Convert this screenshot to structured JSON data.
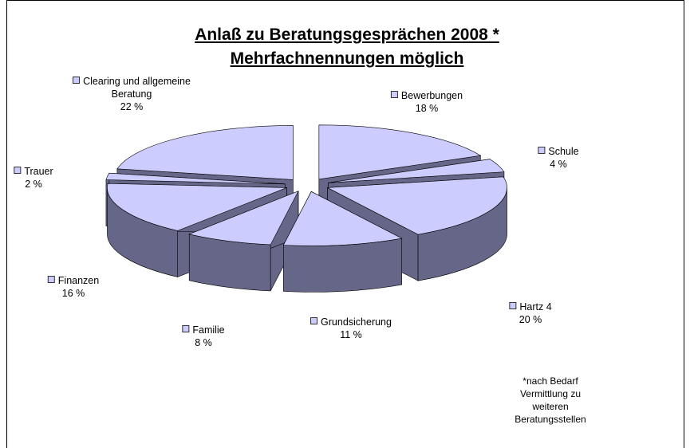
{
  "chart_data": {
    "type": "pie",
    "title": "Anlaß zu Beratungsgesprächen 2008 *",
    "subtitle": "Mehrfachnennungen möglich",
    "categories": [
      "Bewerbungen",
      "Schule",
      "Hartz 4",
      "Grundsicherung",
      "Familie",
      "Finanzen",
      "Trauer",
      "Clearing und allgemeine Beratung"
    ],
    "values": [
      18,
      4,
      20,
      11,
      8,
      16,
      2,
      22
    ],
    "value_labels": [
      "18 %",
      "4 %",
      "20 %",
      "11 %",
      "8 %",
      "16 %",
      "2 %",
      "22 %"
    ],
    "color": "#ccccff",
    "side_color": "#666688",
    "footnote": "*nach Bedarf Vermittlung zu weiteren Beratungsstellen"
  }
}
